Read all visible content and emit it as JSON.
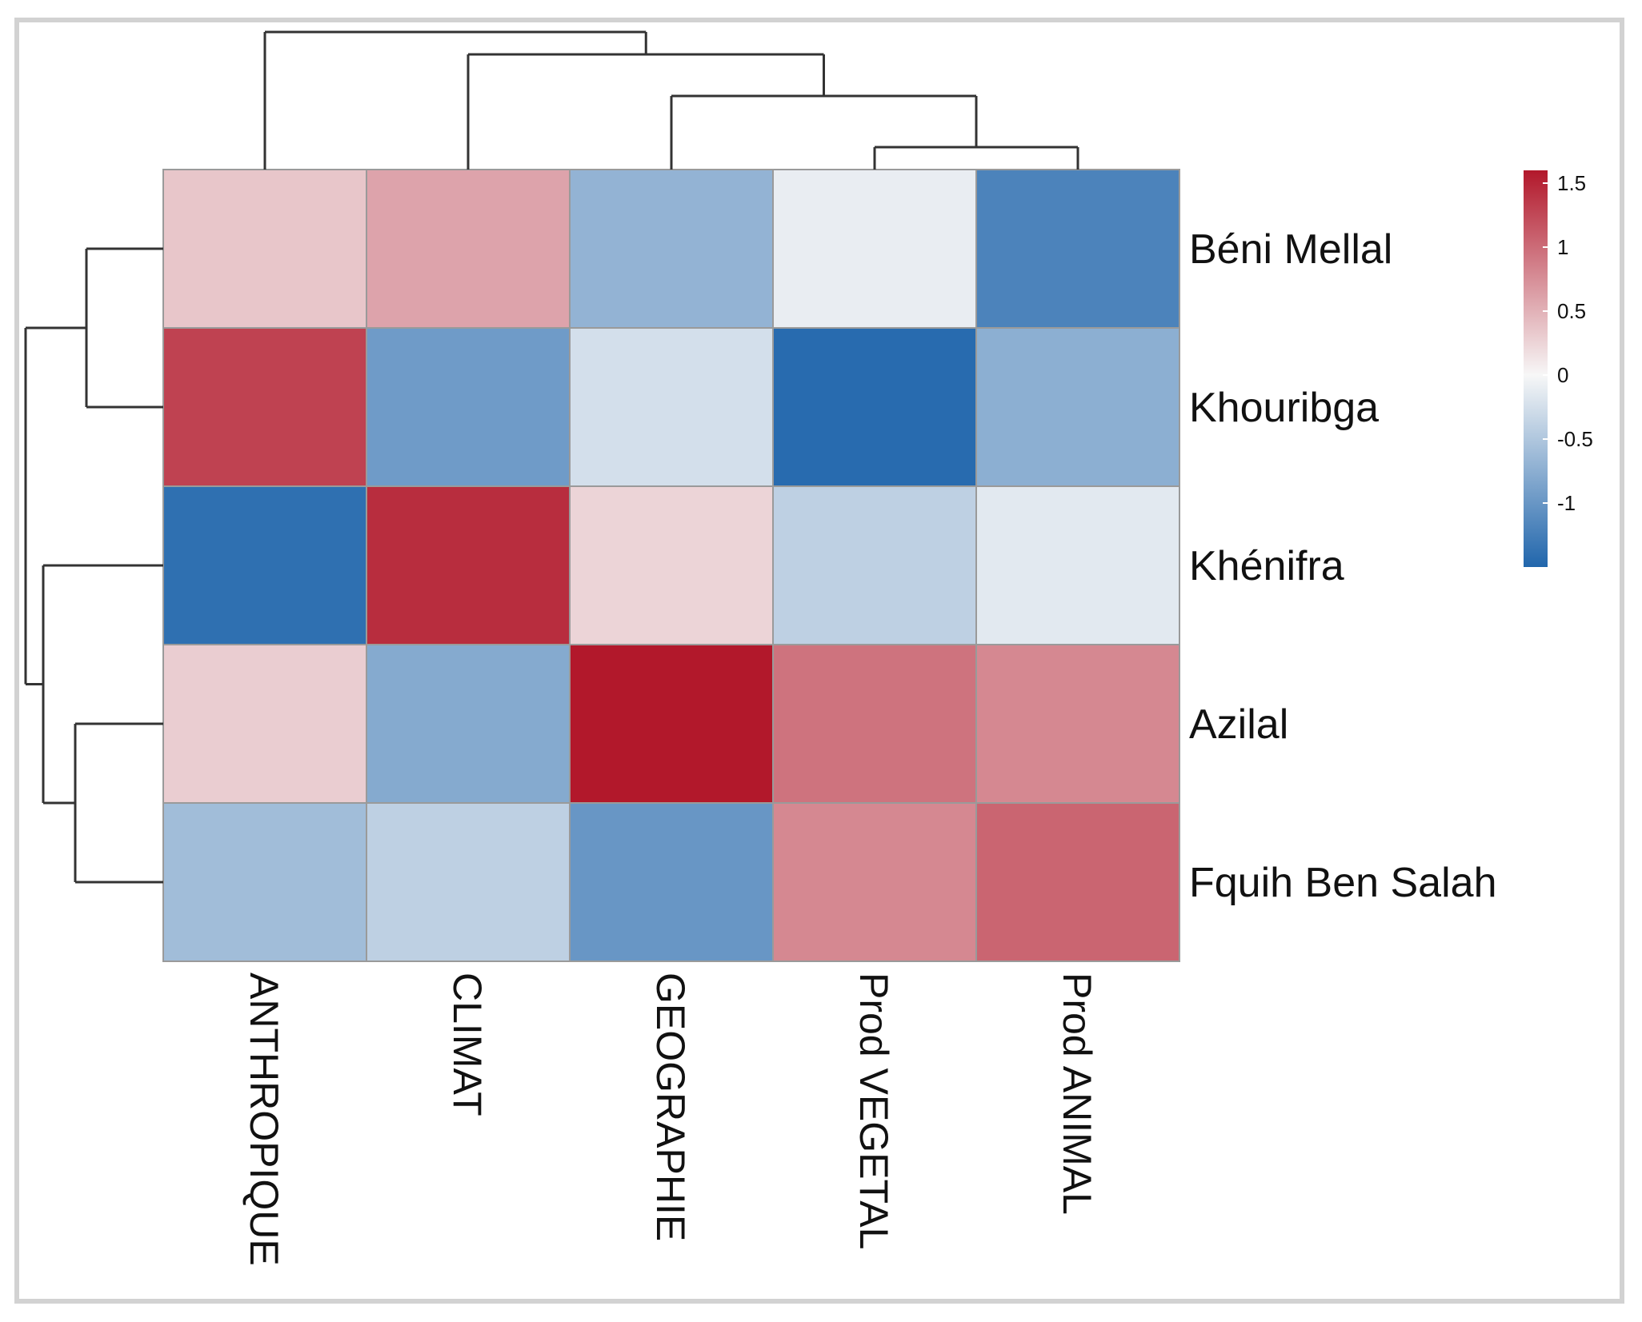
{
  "chart_data": {
    "type": "heatmap",
    "title": "",
    "rows": [
      "Béni Mellal",
      "Khouribga",
      "Khénifra",
      "Azilal",
      "Fquih Ben Salah"
    ],
    "columns": [
      "ANTHROPIQUE",
      "CLIMAT",
      "GEOGRAPHIE",
      "Prod VEGETAL",
      "Prod ANIMAL"
    ],
    "values": [
      [
        0.35,
        0.6,
        -0.7,
        -0.1,
        -1.2
      ],
      [
        1.3,
        -0.95,
        -0.25,
        -1.45,
        -0.75
      ],
      [
        -1.4,
        1.45,
        0.25,
        -0.4,
        -0.15
      ],
      [
        0.3,
        -0.8,
        1.75,
        0.95,
        0.8
      ],
      [
        -0.6,
        -0.4,
        -1.0,
        0.8,
        1.05
      ]
    ],
    "color_scale": {
      "min": -1.5,
      "max": 1.6,
      "low_color": "#2166ac",
      "mid_color": "#f7f7f7",
      "high_color": "#b2182b",
      "ticks": [
        "1.5",
        "1",
        "0.5",
        "0",
        "-0.5",
        "-1"
      ],
      "tick_values": [
        1.5,
        1,
        0.5,
        0,
        -0.5,
        -1
      ]
    },
    "row_dendrogram": "((Béni Mellal,Khouribga),(Khénifra,(Azilal,Fquih Ben Salah)))",
    "column_dendrogram": "(ANTHROPIQUE,(CLIMAT,(GEOGRAPHIE,(Prod VEGETAL,Prod ANIMAL))))"
  }
}
